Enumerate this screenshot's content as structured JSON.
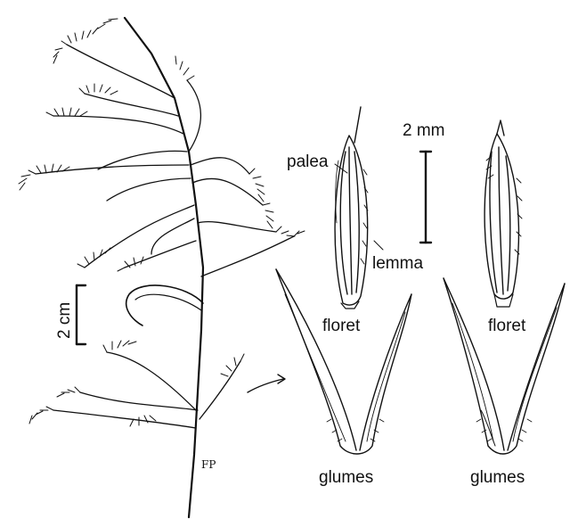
{
  "labels": {
    "palea": "palea",
    "lemma": "lemma",
    "floret_left": "floret",
    "floret_right": "floret",
    "glumes_left": "glumes",
    "glumes_right": "glumes",
    "scale_small": "2 mm",
    "scale_large": "2 cm",
    "monogram": "FP"
  },
  "colors": {
    "ink": "#111111",
    "paper": "#ffffff"
  }
}
